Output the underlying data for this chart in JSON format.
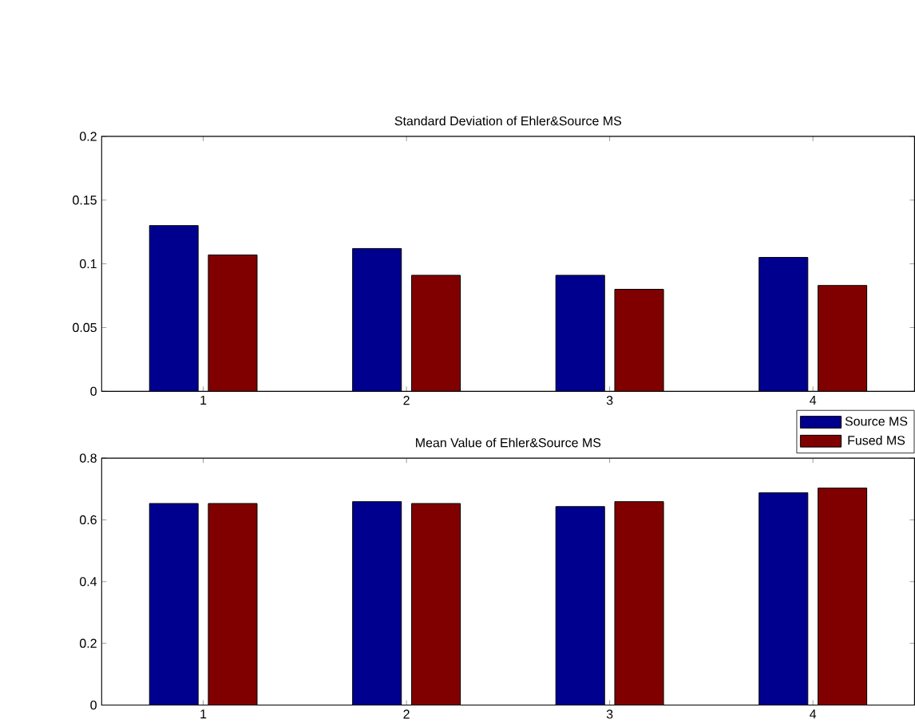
{
  "chart_data": [
    {
      "type": "bar",
      "title": "Standard Deviation of Ehler&Source MS",
      "categories": [
        "1",
        "2",
        "3",
        "4"
      ],
      "series": [
        {
          "color": "#00008f",
          "values": [
            0.13,
            0.112,
            0.091,
            0.105
          ]
        },
        {
          "color": "#800000",
          "values": [
            0.107,
            0.091,
            0.08,
            0.083
          ]
        }
      ],
      "ylim": [
        0,
        0.2
      ],
      "yticks": [
        0,
        0.05,
        0.1,
        0.15,
        0.2
      ]
    },
    {
      "type": "bar",
      "title": "Mean Value of Ehler&Source MS",
      "categories": [
        "1",
        "2",
        "3",
        "4"
      ],
      "series": [
        {
          "name": "Source MS",
          "color": "#00008f",
          "values": [
            0.653,
            0.659,
            0.643,
            0.688
          ]
        },
        {
          "name": "Fused MS",
          "color": "#800000",
          "values": [
            0.653,
            0.653,
            0.659,
            0.703
          ]
        }
      ],
      "ylim": [
        0,
        0.8
      ],
      "yticks": [
        0,
        0.2,
        0.4,
        0.6,
        0.8
      ],
      "legend": "top right"
    }
  ]
}
